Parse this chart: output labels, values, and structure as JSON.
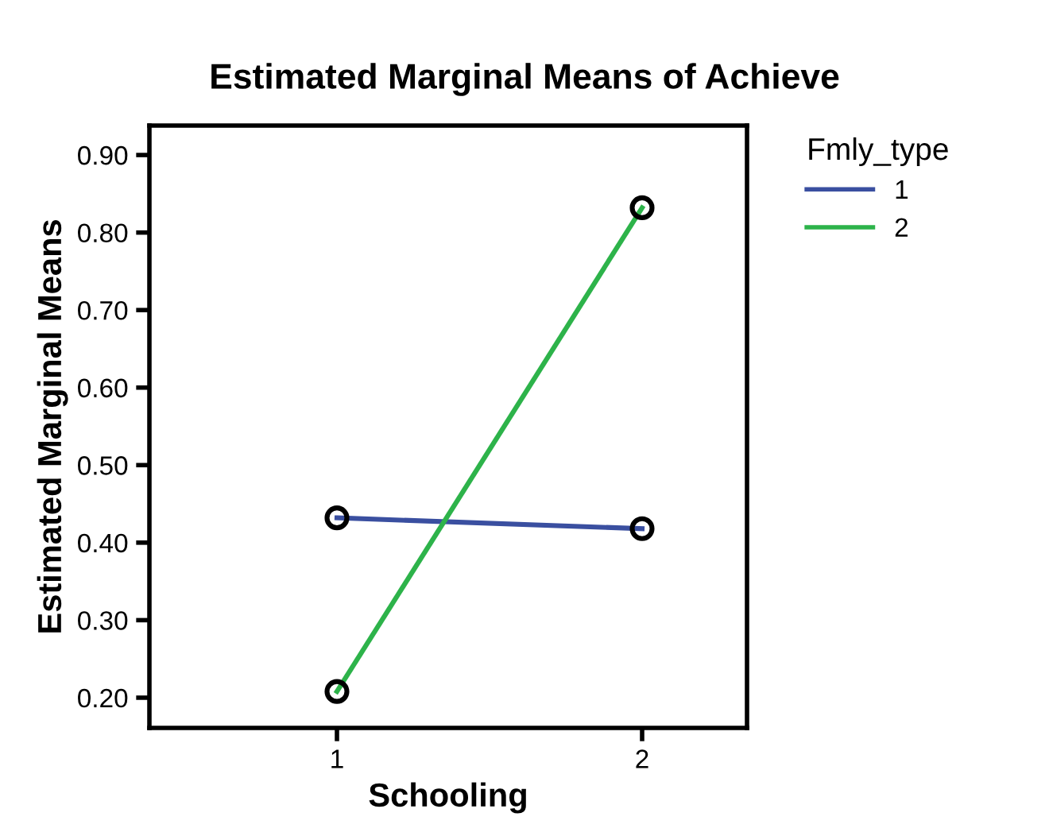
{
  "chart_data": {
    "type": "line",
    "title": "Estimated Marginal Means of Achieve",
    "xlabel": "Schooling",
    "ylabel": "Estimated Marginal Means",
    "legend_title": "Fmly_type",
    "categories": [
      "1",
      "2"
    ],
    "series": [
      {
        "name": "1",
        "color": "#3a4fa0",
        "values": [
          0.432,
          0.418
        ]
      },
      {
        "name": "2",
        "color": "#2db34a",
        "values": [
          0.208,
          0.832
        ]
      }
    ],
    "ylim": [
      0.161,
      0.938
    ],
    "yticks": [
      {
        "value": 0.2,
        "label": "0.20"
      },
      {
        "value": 0.3,
        "label": "0.30"
      },
      {
        "value": 0.4,
        "label": "0.40"
      },
      {
        "value": 0.5,
        "label": "0.50"
      },
      {
        "value": 0.6,
        "label": "0.60"
      },
      {
        "value": 0.7,
        "label": "0.70"
      },
      {
        "value": 0.8,
        "label": "0.80"
      },
      {
        "value": 0.9,
        "label": "0.90"
      }
    ],
    "marker": "circle",
    "line_style": "solid",
    "grid": false,
    "legend": "top right"
  }
}
